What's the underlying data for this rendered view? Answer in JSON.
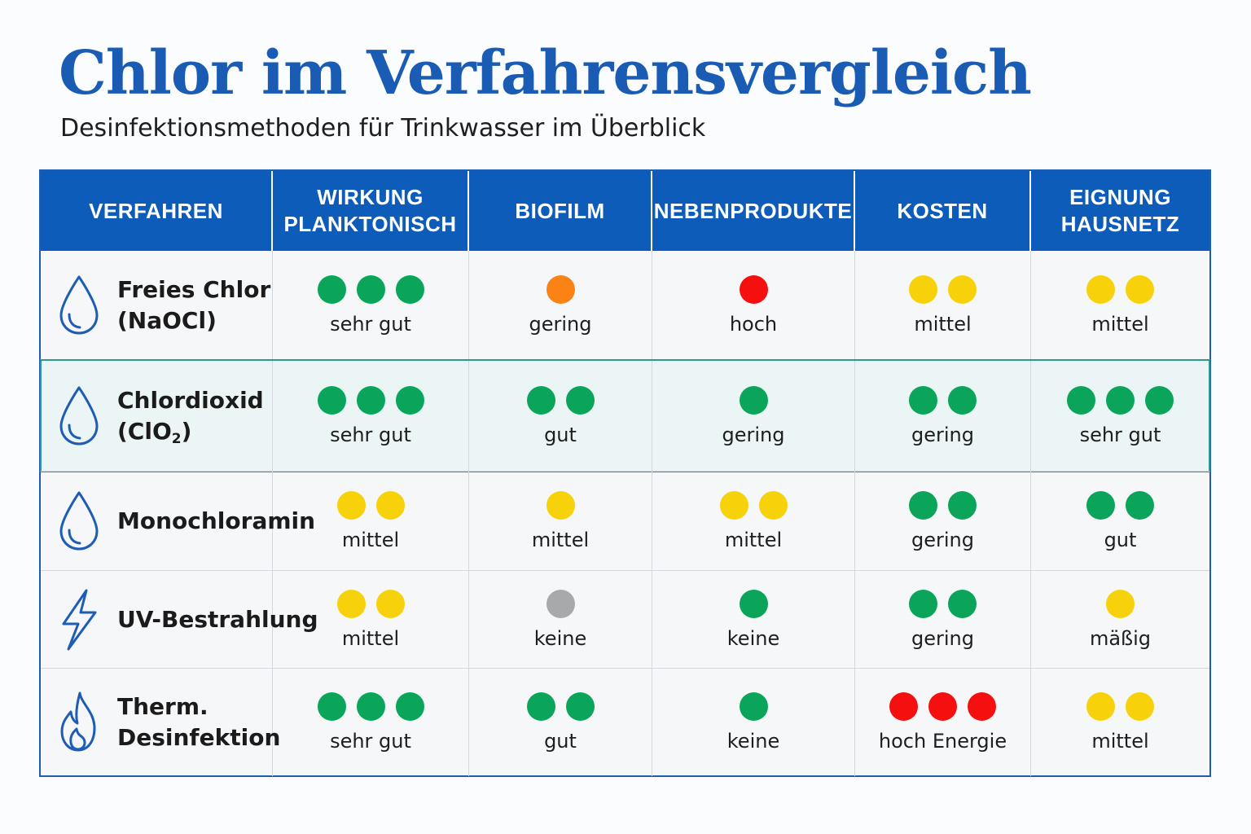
{
  "title": "Chlor im Verfahrensvergleich",
  "subtitle": "Desinfektionsmethoden für Trinkwasser im Überblick",
  "colors": {
    "header_bg": "#0d5cb9",
    "title": "#1a5bb4",
    "icon": "#1f5cb4",
    "highlight_bg": "#ebf5f5",
    "highlight_border": "#2d9a86",
    "dot_green": "#0aa55a",
    "dot_yellow": "#f7d20a",
    "dot_orange": "#fb8214",
    "dot_red": "#f50f0f",
    "dot_gray": "#a8a9ab"
  },
  "chart_data": {
    "type": "table",
    "columns": [
      {
        "key": "verfahren",
        "label": "VERFAHREN"
      },
      {
        "key": "wirkung",
        "label": "WIRKUNG\nPLANKTONISCH"
      },
      {
        "key": "biofilm",
        "label": "BIOFILM"
      },
      {
        "key": "nebenprodukte",
        "label": "NEBENPRODUKTE"
      },
      {
        "key": "kosten",
        "label": "KOSTEN"
      },
      {
        "key": "eignung",
        "label": "EIGNUNG\nHAUSNETZ"
      }
    ],
    "rows": [
      {
        "method": "Freies Chlor (NaOCl)",
        "icon": "drop-icon",
        "highlight": false,
        "ratings": [
          {
            "dots": 3,
            "color": "green",
            "label": "sehr gut"
          },
          {
            "dots": 1,
            "color": "orange",
            "label": "gering"
          },
          {
            "dots": 1,
            "color": "red",
            "label": "hoch"
          },
          {
            "dots": 2,
            "color": "yellow",
            "label": "mittel"
          },
          {
            "dots": 2,
            "color": "yellow",
            "label": "mittel"
          }
        ]
      },
      {
        "method": "Chlordioxid (ClO2)",
        "icon": "drop-icon",
        "highlight": true,
        "ratings": [
          {
            "dots": 3,
            "color": "green",
            "label": "sehr gut"
          },
          {
            "dots": 2,
            "color": "green",
            "label": "gut"
          },
          {
            "dots": 1,
            "color": "green",
            "label": "gering"
          },
          {
            "dots": 2,
            "color": "green",
            "label": "gering"
          },
          {
            "dots": 3,
            "color": "green",
            "label": "sehr gut"
          }
        ]
      },
      {
        "method": "Monochloramin",
        "icon": "drop-icon",
        "highlight": false,
        "ratings": [
          {
            "dots": 2,
            "color": "yellow",
            "label": "mittel"
          },
          {
            "dots": 1,
            "color": "yellow",
            "label": "mittel"
          },
          {
            "dots": 2,
            "color": "yellow",
            "label": "mittel"
          },
          {
            "dots": 2,
            "color": "green",
            "label": "gering"
          },
          {
            "dots": 2,
            "color": "green",
            "label": "gut"
          }
        ]
      },
      {
        "method": "UV-Bestrahlung",
        "icon": "lightning-icon",
        "highlight": false,
        "ratings": [
          {
            "dots": 2,
            "color": "yellow",
            "label": "mittel"
          },
          {
            "dots": 1,
            "color": "gray",
            "label": "keine"
          },
          {
            "dots": 1,
            "color": "green",
            "label": "keine"
          },
          {
            "dots": 2,
            "color": "green",
            "label": "gering"
          },
          {
            "dots": 1,
            "color": "yellow",
            "label": "mäßig"
          }
        ]
      },
      {
        "method": "Therm. Desinfektion",
        "icon": "flame-icon",
        "highlight": false,
        "ratings": [
          {
            "dots": 3,
            "color": "green",
            "label": "sehr gut"
          },
          {
            "dots": 2,
            "color": "green",
            "label": "gut"
          },
          {
            "dots": 1,
            "color": "green",
            "label": "keine"
          },
          {
            "dots": 3,
            "color": "red",
            "label": "hoch Energie"
          },
          {
            "dots": 2,
            "color": "yellow",
            "label": "mittel"
          }
        ]
      }
    ]
  }
}
